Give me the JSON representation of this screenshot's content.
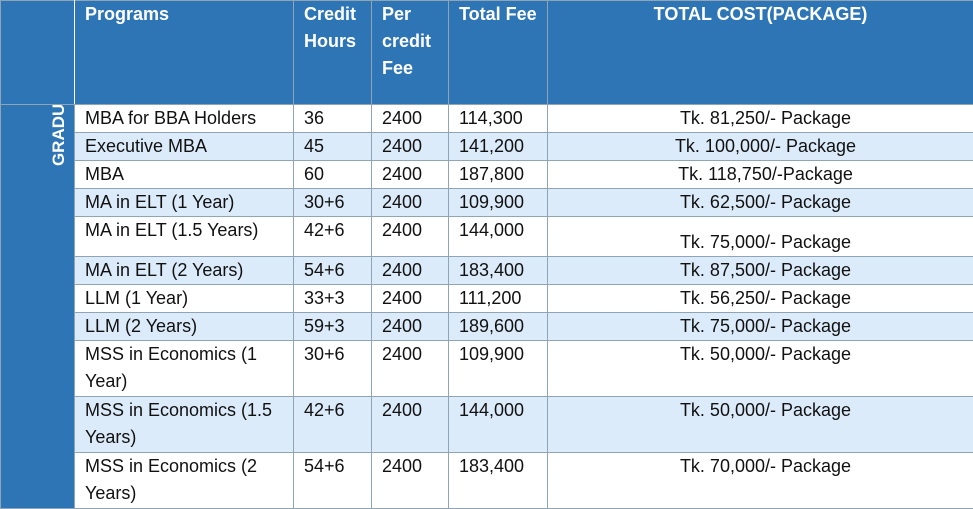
{
  "table": {
    "headers": {
      "programs": "Programs",
      "credit_hours": "Credit Hours",
      "per_credit_fee": "Per credit Fee",
      "total_fee": "Total Fee",
      "total_cost": "TOTAL COST(PACKAGE)"
    },
    "section_label": "GRADUATE",
    "rows": [
      {
        "program": "MBA for BBA Holders",
        "credit_hours": "36",
        "per_credit_fee": "2400",
        "total_fee": "114,300",
        "total_cost": "Tk. 81,250/- Package"
      },
      {
        "program": "Executive MBA",
        "credit_hours": "45",
        "per_credit_fee": "2400",
        "total_fee": "141,200",
        "total_cost": "Tk. 100,000/- Package"
      },
      {
        "program": "MBA",
        "credit_hours": "60",
        "per_credit_fee": "2400",
        "total_fee": "187,800",
        "total_cost": "Tk. 118,750/-Package"
      },
      {
        "program": "MA in ELT (1 Year)",
        "credit_hours": "30+6",
        "per_credit_fee": "2400",
        "total_fee": "109,900",
        "total_cost": "Tk. 62,500/- Package"
      },
      {
        "program": "MA in ELT (1.5 Years)",
        "credit_hours": "42+6",
        "per_credit_fee": "2400",
        "total_fee": "144,000",
        "total_cost": "Tk. 75,000/- Package"
      },
      {
        "program": "MA in ELT (2 Years)",
        "credit_hours": "54+6",
        "per_credit_fee": "2400",
        "total_fee": "183,400",
        "total_cost": "Tk. 87,500/- Package"
      },
      {
        "program": "LLM (1 Year)",
        "credit_hours": "33+3",
        "per_credit_fee": "2400",
        "total_fee": "111,200",
        "total_cost": "Tk. 56,250/- Package"
      },
      {
        "program": "LLM (2 Years)",
        "credit_hours": "59+3",
        "per_credit_fee": "2400",
        "total_fee": "189,600",
        "total_cost": "Tk. 75,000/- Package"
      },
      {
        "program": "MSS in Economics (1 Year)",
        "credit_hours": "30+6",
        "per_credit_fee": "2400",
        "total_fee": "109,900",
        "total_cost": "Tk. 50,000/- Package"
      },
      {
        "program": "MSS in Economics (1.5 Years)",
        "credit_hours": "42+6",
        "per_credit_fee": "2400",
        "total_fee": "144,000",
        "total_cost": "Tk. 50,000/- Package"
      },
      {
        "program": "MSS in Economics (2 Years)",
        "credit_hours": "54+6",
        "per_credit_fee": "2400",
        "total_fee": "183,400",
        "total_cost": "Tk. 70,000/- Package"
      }
    ]
  }
}
